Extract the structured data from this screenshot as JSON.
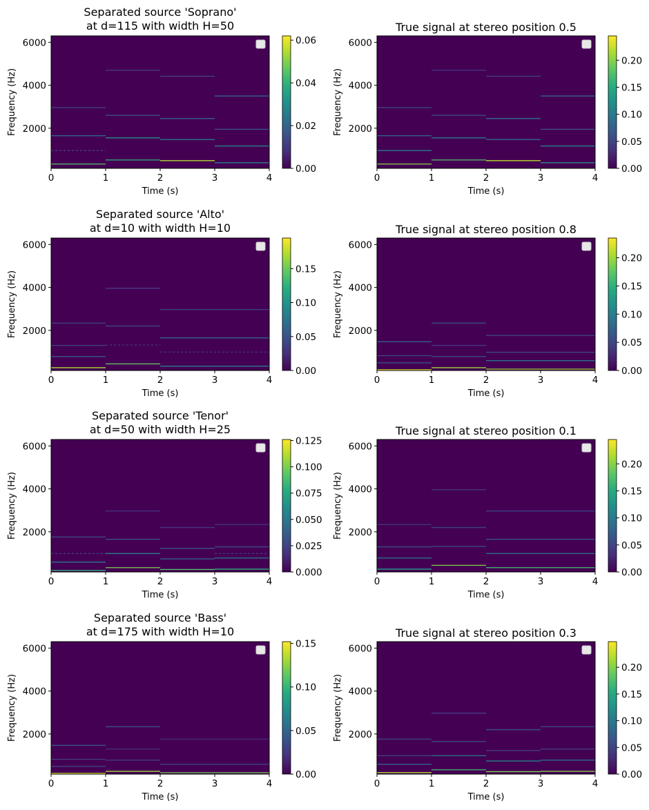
{
  "colormap": "viridis",
  "background_color": "#440154",
  "chart_data": [
    {
      "type": "heatmap",
      "title": [
        "Separated source 'Soprano'",
        "at d=115 with width H=50"
      ],
      "xlabel": "Time (s)",
      "ylabel": "Frequency (Hz)",
      "xlim": [
        0,
        4
      ],
      "ylim": [
        130,
        6300
      ],
      "xticks": [
        "0",
        "1",
        "2",
        "3",
        "4"
      ],
      "yticks": [
        2000,
        4000,
        6000
      ],
      "colorbar": {
        "range": [
          0,
          0.062
        ],
        "ticks": [
          "0.00",
          "0.02",
          "0.04",
          "0.06"
        ]
      },
      "legend": "top-right",
      "lines": [
        {
          "t0": 0,
          "t1": 1,
          "f": 330,
          "v": 0.045
        },
        {
          "t0": 0,
          "t1": 1,
          "f": 960,
          "v": 0.012,
          "dashed": true
        },
        {
          "t0": 0,
          "t1": 1,
          "f": 1650,
          "v": 0.02
        },
        {
          "t0": 0,
          "t1": 1,
          "f": 2960,
          "v": 0.012
        },
        {
          "t0": 1,
          "t1": 2,
          "f": 520,
          "v": 0.04
        },
        {
          "t0": 1,
          "t1": 2,
          "f": 1550,
          "v": 0.03
        },
        {
          "t0": 1,
          "t1": 2,
          "f": 2600,
          "v": 0.016
        },
        {
          "t0": 1,
          "t1": 2,
          "f": 4700,
          "v": 0.01
        },
        {
          "t0": 2,
          "t1": 3,
          "f": 490,
          "v": 0.055
        },
        {
          "t0": 2,
          "t1": 3,
          "f": 1470,
          "v": 0.024
        },
        {
          "t0": 2,
          "t1": 3,
          "f": 2450,
          "v": 0.02
        },
        {
          "t0": 2,
          "t1": 3,
          "f": 4420,
          "v": 0.013
        },
        {
          "t0": 3,
          "t1": 4,
          "f": 390,
          "v": 0.03
        },
        {
          "t0": 3,
          "t1": 4,
          "f": 1170,
          "v": 0.03
        },
        {
          "t0": 3,
          "t1": 4,
          "f": 1950,
          "v": 0.016
        },
        {
          "t0": 3,
          "t1": 4,
          "f": 3500,
          "v": 0.022
        }
      ]
    },
    {
      "type": "heatmap",
      "title": [
        "True signal at stereo position 0.5"
      ],
      "xlabel": "Time (s)",
      "ylabel": "Frequency (Hz)",
      "xlim": [
        0,
        4
      ],
      "ylim": [
        130,
        6300
      ],
      "xticks": [
        "0",
        "1",
        "2",
        "3",
        "4"
      ],
      "yticks": [
        2000,
        4000,
        6000
      ],
      "colorbar": {
        "range": [
          0,
          0.245
        ],
        "ticks": [
          "0.00",
          "0.05",
          "0.10",
          "0.15",
          "0.20"
        ]
      },
      "legend": "top-right",
      "lines": [
        {
          "t0": 0,
          "t1": 1,
          "f": 330,
          "v": 0.2
        },
        {
          "t0": 0,
          "t1": 1,
          "f": 960,
          "v": 0.1
        },
        {
          "t0": 0,
          "t1": 1,
          "f": 1650,
          "v": 0.07
        },
        {
          "t0": 0,
          "t1": 1,
          "f": 2960,
          "v": 0.05
        },
        {
          "t0": 1,
          "t1": 2,
          "f": 520,
          "v": 0.18
        },
        {
          "t0": 1,
          "t1": 2,
          "f": 1550,
          "v": 0.1
        },
        {
          "t0": 1,
          "t1": 2,
          "f": 2600,
          "v": 0.06
        },
        {
          "t0": 1,
          "t1": 2,
          "f": 4700,
          "v": 0.035
        },
        {
          "t0": 2,
          "t1": 3,
          "f": 490,
          "v": 0.22
        },
        {
          "t0": 2,
          "t1": 3,
          "f": 1470,
          "v": 0.08
        },
        {
          "t0": 2,
          "t1": 3,
          "f": 2450,
          "v": 0.09
        },
        {
          "t0": 2,
          "t1": 3,
          "f": 4420,
          "v": 0.05
        },
        {
          "t0": 3,
          "t1": 4,
          "f": 390,
          "v": 0.14
        },
        {
          "t0": 3,
          "t1": 4,
          "f": 1170,
          "v": 0.12
        },
        {
          "t0": 3,
          "t1": 4,
          "f": 1950,
          "v": 0.06
        },
        {
          "t0": 3,
          "t1": 4,
          "f": 3500,
          "v": 0.09
        }
      ]
    },
    {
      "type": "heatmap",
      "title": [
        "Separated source 'Alto'",
        "at d=10 with width H=10"
      ],
      "xlabel": "Time (s)",
      "ylabel": "Frequency (Hz)",
      "xlim": [
        0,
        4
      ],
      "ylim": [
        130,
        6300
      ],
      "xticks": [
        "0",
        "1",
        "2",
        "3",
        "4"
      ],
      "yticks": [
        2000,
        4000,
        6000
      ],
      "colorbar": {
        "range": [
          0,
          0.195
        ],
        "ticks": [
          "0.00",
          "0.05",
          "0.10",
          "0.15"
        ]
      },
      "legend": "top-right",
      "lines": [
        {
          "t0": 0,
          "t1": 1,
          "f": 260,
          "v": 0.17
        },
        {
          "t0": 0,
          "t1": 1,
          "f": 780,
          "v": 0.06
        },
        {
          "t0": 0,
          "t1": 1,
          "f": 1300,
          "v": 0.04
        },
        {
          "t0": 0,
          "t1": 1,
          "f": 2340,
          "v": 0.04
        },
        {
          "t0": 1,
          "t1": 2,
          "f": 440,
          "v": 0.15
        },
        {
          "t0": 1,
          "t1": 2,
          "f": 1320,
          "v": 0.03,
          "dashed": true
        },
        {
          "t0": 1,
          "t1": 2,
          "f": 2200,
          "v": 0.04
        },
        {
          "t0": 1,
          "t1": 2,
          "f": 3960,
          "v": 0.035
        },
        {
          "t0": 2,
          "t1": 4,
          "f": 330,
          "v": 0.09
        },
        {
          "t0": 2,
          "t1": 4,
          "f": 990,
          "v": 0.03,
          "dashed": true
        },
        {
          "t0": 2,
          "t1": 4,
          "f": 1650,
          "v": 0.06
        },
        {
          "t0": 2,
          "t1": 4,
          "f": 2970,
          "v": 0.04
        }
      ]
    },
    {
      "type": "heatmap",
      "title": [
        "True signal at stereo position 0.8"
      ],
      "xlabel": "Time (s)",
      "ylabel": "Frequency (Hz)",
      "xlim": [
        0,
        4
      ],
      "ylim": [
        130,
        6300
      ],
      "xticks": [
        "0",
        "1",
        "2",
        "3",
        "4"
      ],
      "yticks": [
        2000,
        4000,
        6000
      ],
      "colorbar": {
        "range": [
          0,
          0.235
        ],
        "ticks": [
          "0.00",
          "0.05",
          "0.10",
          "0.15",
          "0.20"
        ]
      },
      "legend": "top-right",
      "lines": [
        {
          "t0": 0,
          "t1": 1,
          "f": 165,
          "v": 0.22
        },
        {
          "t0": 0,
          "t1": 1,
          "f": 490,
          "v": 0.06
        },
        {
          "t0": 0,
          "t1": 1,
          "f": 820,
          "v": 0.05
        },
        {
          "t0": 0,
          "t1": 1,
          "f": 1470,
          "v": 0.07
        },
        {
          "t0": 1,
          "t1": 2,
          "f": 260,
          "v": 0.2
        },
        {
          "t0": 1,
          "t1": 2,
          "f": 780,
          "v": 0.06
        },
        {
          "t0": 1,
          "t1": 2,
          "f": 1300,
          "v": 0.04
        },
        {
          "t0": 1,
          "t1": 2,
          "f": 2340,
          "v": 0.06
        },
        {
          "t0": 2,
          "t1": 4,
          "f": 195,
          "v": 0.2
        },
        {
          "t0": 2,
          "t1": 4,
          "f": 590,
          "v": 0.09
        },
        {
          "t0": 2,
          "t1": 4,
          "f": 980,
          "v": 0.05
        },
        {
          "t0": 2,
          "t1": 4,
          "f": 1760,
          "v": 0.05
        }
      ]
    },
    {
      "type": "heatmap",
      "title": [
        "Separated source 'Tenor'",
        "at d=50 with width H=25"
      ],
      "xlabel": "Time (s)",
      "ylabel": "Frequency (Hz)",
      "xlim": [
        0,
        4
      ],
      "ylim": [
        130,
        6300
      ],
      "xticks": [
        "0",
        "1",
        "2",
        "3",
        "4"
      ],
      "yticks": [
        2000,
        4000,
        6000
      ],
      "colorbar": {
        "range": [
          0,
          0.126
        ],
        "ticks": [
          "0.000",
          "0.025",
          "0.050",
          "0.075",
          "0.100",
          "0.125"
        ]
      },
      "legend": "top-right",
      "lines": [
        {
          "t0": 0,
          "t1": 1,
          "f": 200,
          "v": 0.08
        },
        {
          "t0": 0,
          "t1": 1,
          "f": 590,
          "v": 0.05
        },
        {
          "t0": 0,
          "t1": 1,
          "f": 990,
          "v": 0.025,
          "dashed": true
        },
        {
          "t0": 0,
          "t1": 1,
          "f": 1760,
          "v": 0.03
        },
        {
          "t0": 1,
          "t1": 2,
          "f": 330,
          "v": 0.1
        },
        {
          "t0": 1,
          "t1": 2,
          "f": 990,
          "v": 0.06
        },
        {
          "t0": 1,
          "t1": 2,
          "f": 1650,
          "v": 0.03
        },
        {
          "t0": 1,
          "t1": 2,
          "f": 2970,
          "v": 0.02
        },
        {
          "t0": 2,
          "t1": 3,
          "f": 245,
          "v": 0.09
        },
        {
          "t0": 2,
          "t1": 3,
          "f": 740,
          "v": 0.04
        },
        {
          "t0": 2,
          "t1": 3,
          "f": 1230,
          "v": 0.035
        },
        {
          "t0": 2,
          "t1": 3,
          "f": 2200,
          "v": 0.02
        },
        {
          "t0": 3,
          "t1": 4,
          "f": 260,
          "v": 0.08
        },
        {
          "t0": 3,
          "t1": 4,
          "f": 780,
          "v": 0.05
        },
        {
          "t0": 3,
          "t1": 4,
          "f": 990,
          "v": 0.025,
          "dashed": true
        },
        {
          "t0": 3,
          "t1": 4,
          "f": 1300,
          "v": 0.03
        },
        {
          "t0": 3,
          "t1": 4,
          "f": 2340,
          "v": 0.02
        }
      ]
    },
    {
      "type": "heatmap",
      "title": [
        "True signal at stereo position 0.1"
      ],
      "xlabel": "Time (s)",
      "ylabel": "Frequency (Hz)",
      "xlim": [
        0,
        4
      ],
      "ylim": [
        130,
        6300
      ],
      "xticks": [
        "0",
        "1",
        "2",
        "3",
        "4"
      ],
      "yticks": [
        2000,
        4000,
        6000
      ],
      "colorbar": {
        "range": [
          0,
          0.245
        ],
        "ticks": [
          "0.00",
          "0.05",
          "0.10",
          "0.15",
          "0.20"
        ]
      },
      "legend": "top-right",
      "lines": [
        {
          "t0": 0,
          "t1": 1,
          "f": 260,
          "v": 0.14
        },
        {
          "t0": 0,
          "t1": 1,
          "f": 780,
          "v": 0.1
        },
        {
          "t0": 0,
          "t1": 1,
          "f": 1300,
          "v": 0.06
        },
        {
          "t0": 0,
          "t1": 1,
          "f": 2340,
          "v": 0.04
        },
        {
          "t0": 1,
          "t1": 2,
          "f": 440,
          "v": 0.2
        },
        {
          "t0": 1,
          "t1": 2,
          "f": 1320,
          "v": 0.06
        },
        {
          "t0": 1,
          "t1": 2,
          "f": 2200,
          "v": 0.05
        },
        {
          "t0": 1,
          "t1": 2,
          "f": 3960,
          "v": 0.035
        },
        {
          "t0": 2,
          "t1": 4,
          "f": 330,
          "v": 0.17
        },
        {
          "t0": 2,
          "t1": 4,
          "f": 990,
          "v": 0.1
        },
        {
          "t0": 2,
          "t1": 4,
          "f": 1650,
          "v": 0.06
        },
        {
          "t0": 2,
          "t1": 4,
          "f": 2970,
          "v": 0.05
        }
      ]
    },
    {
      "type": "heatmap",
      "title": [
        "Separated source 'Bass'",
        "at d=175 with width H=10"
      ],
      "xlabel": "Time (s)",
      "ylabel": "Frequency (Hz)",
      "xlim": [
        0,
        4
      ],
      "ylim": [
        130,
        6300
      ],
      "xticks": [
        "0",
        "1",
        "2",
        "3",
        "4"
      ],
      "yticks": [
        2000,
        4000,
        6000
      ],
      "colorbar": {
        "range": [
          0,
          0.152
        ],
        "ticks": [
          "0.00",
          "0.05",
          "0.10",
          "0.15"
        ]
      },
      "legend": "top-right",
      "lines": [
        {
          "t0": 0,
          "t1": 1,
          "f": 165,
          "v": 0.14
        },
        {
          "t0": 0,
          "t1": 1,
          "f": 490,
          "v": 0.03
        },
        {
          "t0": 0,
          "t1": 1,
          "f": 820,
          "v": 0.03
        },
        {
          "t0": 0,
          "t1": 1,
          "f": 1470,
          "v": 0.04
        },
        {
          "t0": 1,
          "t1": 2,
          "f": 260,
          "v": 0.13
        },
        {
          "t0": 1,
          "t1": 2,
          "f": 780,
          "v": 0.03
        },
        {
          "t0": 1,
          "t1": 2,
          "f": 1300,
          "v": 0.02
        },
        {
          "t0": 1,
          "t1": 2,
          "f": 2340,
          "v": 0.04
        },
        {
          "t0": 2,
          "t1": 4,
          "f": 195,
          "v": 0.12
        },
        {
          "t0": 2,
          "t1": 4,
          "f": 590,
          "v": 0.03
        },
        {
          "t0": 2,
          "t1": 4,
          "f": 1760,
          "v": 0.02
        }
      ]
    },
    {
      "type": "heatmap",
      "title": [
        "True signal at stereo position 0.3"
      ],
      "xlabel": "Time (s)",
      "ylabel": "Frequency (Hz)",
      "xlim": [
        0,
        4
      ],
      "ylim": [
        130,
        6300
      ],
      "xticks": [
        "0",
        "1",
        "2",
        "3",
        "4"
      ],
      "yticks": [
        2000,
        4000,
        6000
      ],
      "colorbar": {
        "range": [
          0,
          0.248
        ],
        "ticks": [
          "0.00",
          "0.05",
          "0.10",
          "0.15",
          "0.20"
        ]
      },
      "legend": "top-right",
      "lines": [
        {
          "t0": 0,
          "t1": 1,
          "f": 200,
          "v": 0.22
        },
        {
          "t0": 0,
          "t1": 1,
          "f": 590,
          "v": 0.08
        },
        {
          "t0": 0,
          "t1": 1,
          "f": 990,
          "v": 0.05
        },
        {
          "t0": 0,
          "t1": 1,
          "f": 1760,
          "v": 0.05
        },
        {
          "t0": 1,
          "t1": 2,
          "f": 330,
          "v": 0.17
        },
        {
          "t0": 1,
          "t1": 2,
          "f": 990,
          "v": 0.1
        },
        {
          "t0": 1,
          "t1": 2,
          "f": 1650,
          "v": 0.05
        },
        {
          "t0": 1,
          "t1": 2,
          "f": 2970,
          "v": 0.05
        },
        {
          "t0": 2,
          "t1": 3,
          "f": 245,
          "v": 0.2
        },
        {
          "t0": 2,
          "t1": 3,
          "f": 740,
          "v": 0.12
        },
        {
          "t0": 2,
          "t1": 3,
          "f": 1230,
          "v": 0.05
        },
        {
          "t0": 2,
          "t1": 3,
          "f": 2200,
          "v": 0.06
        },
        {
          "t0": 3,
          "t1": 4,
          "f": 260,
          "v": 0.2
        },
        {
          "t0": 3,
          "t1": 4,
          "f": 780,
          "v": 0.1
        },
        {
          "t0": 3,
          "t1": 4,
          "f": 1300,
          "v": 0.05
        },
        {
          "t0": 3,
          "t1": 4,
          "f": 2340,
          "v": 0.06
        }
      ]
    }
  ]
}
